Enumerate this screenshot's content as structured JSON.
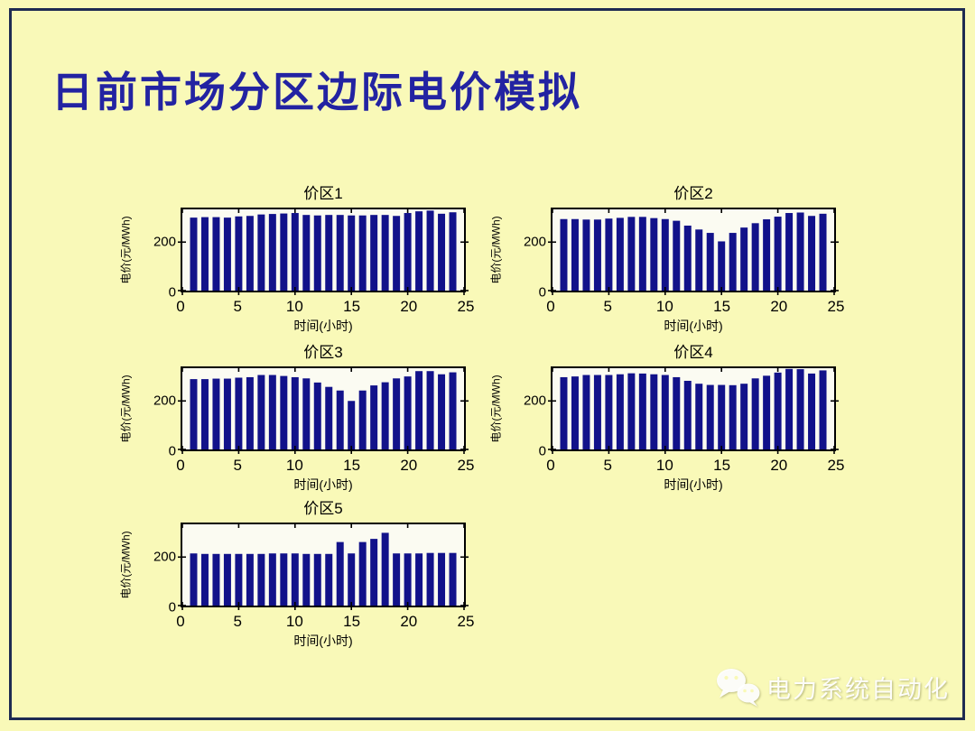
{
  "slide": {
    "title": "日前市场分区边际电价模拟",
    "watermark": "电力系统自动化",
    "colors": {
      "background": "#F9F9B8",
      "frame_border": "#1E2B52",
      "title_text": "#2323A2",
      "bar": "#12128A",
      "plot_background": "#FBFBF2",
      "axis": "#000000"
    }
  },
  "chart_data": [
    {
      "type": "bar",
      "title": "价区1",
      "xlabel": "时间(小时)",
      "ylabel": "电价(元/MWh)",
      "x": [
        1,
        2,
        3,
        4,
        5,
        6,
        7,
        8,
        9,
        10,
        11,
        12,
        13,
        14,
        15,
        16,
        17,
        18,
        19,
        20,
        21,
        22,
        23,
        24
      ],
      "values": [
        301,
        303,
        303,
        301,
        306,
        308,
        314,
        316,
        318,
        320,
        312,
        310,
        312,
        312,
        310,
        310,
        312,
        312,
        308,
        320,
        327,
        330,
        317,
        323
      ],
      "xlim": [
        0,
        25
      ],
      "ylim": [
        0,
        335
      ],
      "xticks": [
        0,
        5,
        10,
        15,
        20,
        25
      ],
      "yticks": [
        0,
        200
      ],
      "grid": false,
      "legend": false
    },
    {
      "type": "bar",
      "title": "价区2",
      "xlabel": "时间(小时)",
      "ylabel": "电价(元/MWh)",
      "x": [
        1,
        2,
        3,
        4,
        5,
        6,
        7,
        8,
        9,
        10,
        11,
        12,
        13,
        14,
        15,
        16,
        17,
        18,
        19,
        20,
        21,
        22,
        23,
        24
      ],
      "values": [
        295,
        295,
        293,
        293,
        297,
        300,
        304,
        304,
        299,
        295,
        288,
        268,
        252,
        238,
        203,
        238,
        260,
        278,
        294,
        305,
        320,
        322,
        308,
        317
      ],
      "xlim": [
        0,
        25
      ],
      "ylim": [
        0,
        335
      ],
      "xticks": [
        0,
        5,
        10,
        15,
        20,
        25
      ],
      "yticks": [
        0,
        200
      ],
      "grid": false,
      "legend": false
    },
    {
      "type": "bar",
      "title": "价区3",
      "xlabel": "时间(小时)",
      "ylabel": "电价(元/MWh)",
      "x": [
        1,
        2,
        3,
        4,
        5,
        6,
        7,
        8,
        9,
        10,
        11,
        12,
        13,
        14,
        15,
        16,
        17,
        18,
        19,
        20,
        21,
        22,
        23,
        24
      ],
      "values": [
        290,
        290,
        292,
        292,
        296,
        298,
        307,
        307,
        303,
        298,
        293,
        276,
        258,
        243,
        200,
        243,
        264,
        277,
        293,
        301,
        323,
        323,
        310,
        318
      ],
      "xlim": [
        0,
        25
      ],
      "ylim": [
        0,
        335
      ],
      "xticks": [
        0,
        5,
        10,
        15,
        20,
        25
      ],
      "yticks": [
        0,
        200
      ],
      "grid": false,
      "legend": false
    },
    {
      "type": "bar",
      "title": "价区4",
      "xlabel": "时间(小时)",
      "ylabel": "电价(元/MWh)",
      "x": [
        1,
        2,
        3,
        4,
        5,
        6,
        7,
        8,
        9,
        10,
        11,
        12,
        13,
        14,
        15,
        16,
        17,
        18,
        19,
        20,
        21,
        22,
        23,
        24
      ],
      "values": [
        298,
        301,
        307,
        307,
        307,
        310,
        314,
        313,
        310,
        307,
        298,
        283,
        271,
        266,
        266,
        265,
        271,
        293,
        304,
        317,
        332,
        331,
        313,
        326
      ],
      "xlim": [
        0,
        25
      ],
      "ylim": [
        0,
        335
      ],
      "xticks": [
        0,
        5,
        10,
        15,
        20,
        25
      ],
      "yticks": [
        0,
        200
      ],
      "grid": false,
      "legend": false
    },
    {
      "type": "bar",
      "title": "价区5",
      "xlabel": "时间(小时)",
      "ylabel": "电价(元/MWh)",
      "x": [
        1,
        2,
        3,
        4,
        5,
        6,
        7,
        8,
        9,
        10,
        11,
        12,
        13,
        14,
        15,
        16,
        17,
        18,
        19,
        20,
        21,
        22,
        23,
        24
      ],
      "values": [
        215,
        213,
        213,
        213,
        213,
        213,
        213,
        215,
        215,
        215,
        213,
        213,
        213,
        262,
        215,
        262,
        275,
        300,
        215,
        215,
        215,
        217,
        217,
        217
      ],
      "xlim": [
        0,
        25
      ],
      "ylim": [
        0,
        335
      ],
      "xticks": [
        0,
        5,
        10,
        15,
        20,
        25
      ],
      "yticks": [
        0,
        200
      ],
      "grid": false,
      "legend": false
    }
  ]
}
